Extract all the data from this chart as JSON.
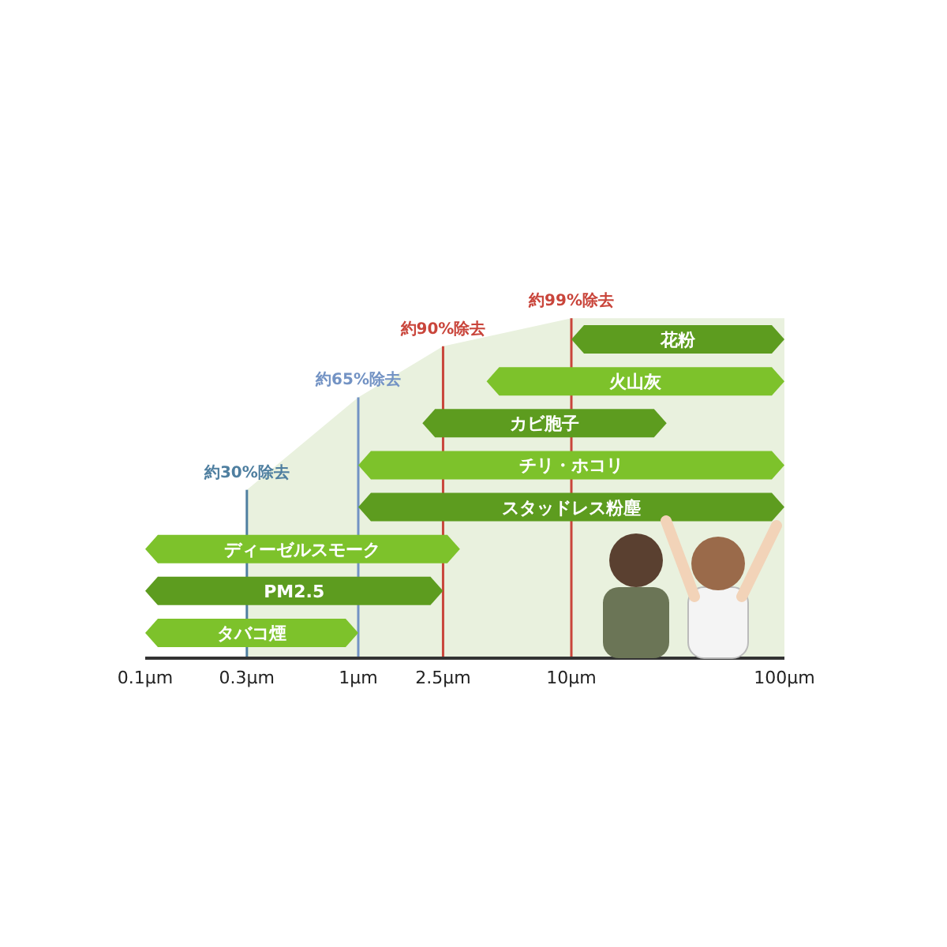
{
  "chart_data": {
    "type": "bar",
    "orientation": "horizontal",
    "log": "x",
    "categories": [
      "花粉",
      "火山灰",
      "カビ胞子",
      "チリ・ホコリ",
      "スタッドレス粉塵",
      "ディーゼルスモーク",
      "PM2.5",
      "タバコ煙"
    ],
    "base": [
      10,
      4,
      2,
      1,
      1,
      0.1,
      0.1,
      0.1
    ],
    "values": [
      90,
      96,
      26,
      99,
      99,
      2.9,
      2.4,
      0.9
    ],
    "colors": [
      "#5d9c1f",
      "#7dc22b",
      "#5d9c1f",
      "#7dc22b",
      "#5d9c1f",
      "#7dc22b",
      "#5d9c1f",
      "#7dc22b"
    ],
    "xlim": [
      0.1,
      100
    ],
    "xticks": [
      {
        "value": 0.1,
        "label": "0.1μm"
      },
      {
        "value": 0.3,
        "label": "0.3μm"
      },
      {
        "value": 1,
        "label": "1μm"
      },
      {
        "value": 2.5,
        "label": "2.5μm"
      },
      {
        "value": 10,
        "label": "10μm"
      },
      {
        "value": 100,
        "label": "100μm"
      }
    ],
    "tick_labels": "x",
    "ref_lines": [
      {
        "axis": "x",
        "value": 0.3,
        "color": "#4f7fa0",
        "label": "約30%除去"
      },
      {
        "axis": "x",
        "value": 1,
        "color": "#7393c4",
        "label": "約65%除去"
      },
      {
        "axis": "x",
        "value": 2.5,
        "color": "#c9453b",
        "label": "約90%除去"
      },
      {
        "axis": "x",
        "value": 10,
        "color": "#c9453b",
        "label": "約99%除去"
      }
    ]
  }
}
